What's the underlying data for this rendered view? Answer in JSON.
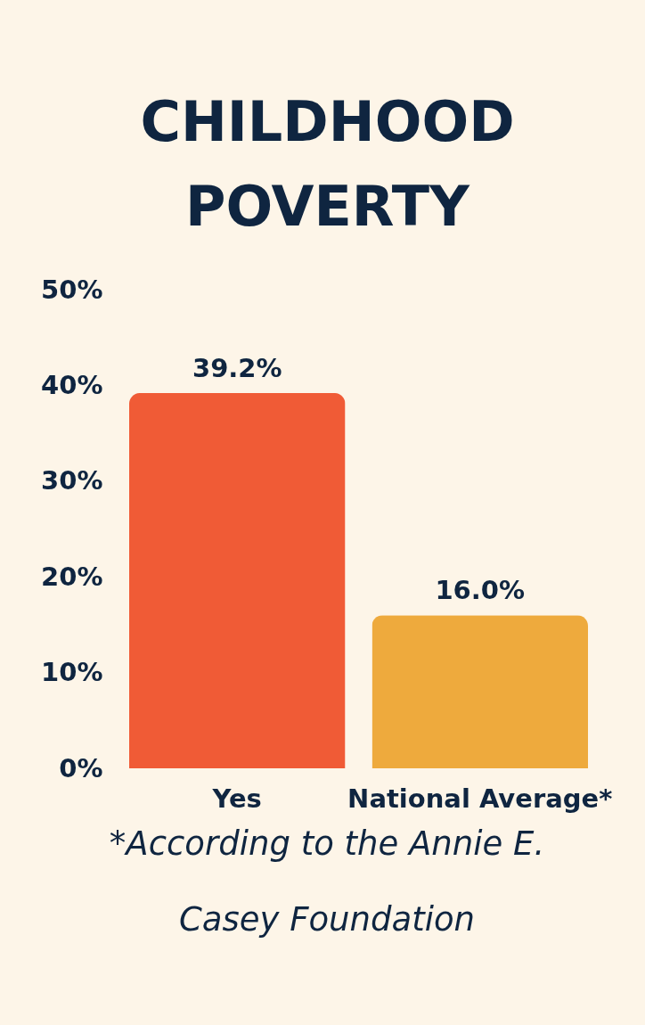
{
  "chart_data": {
    "type": "bar",
    "title": "CHILDHOOD POVERTY",
    "categories": [
      "Yes",
      "National Average*"
    ],
    "values": [
      39.2,
      16.0
    ],
    "colors": [
      "#f05b36",
      "#eeaa3d"
    ],
    "value_labels": [
      "39.2%",
      "16.0%"
    ],
    "ylim": [
      0,
      50
    ],
    "yticks": [
      {
        "value": 0,
        "label": "0%"
      },
      {
        "value": 10,
        "label": "10%"
      },
      {
        "value": 20,
        "label": "20%"
      },
      {
        "value": 30,
        "label": "30%"
      },
      {
        "value": 40,
        "label": "40%"
      },
      {
        "value": 50,
        "label": "50%"
      }
    ],
    "grid": false,
    "annotations": [
      "*According to the Annie E. Casey Foundation"
    ]
  }
}
